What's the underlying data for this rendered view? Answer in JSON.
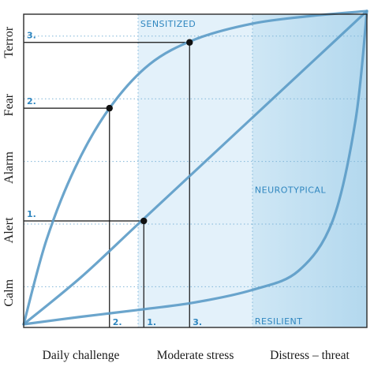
{
  "chart_data": {
    "type": "line",
    "xlabel": "",
    "ylabel": "",
    "xlim": [
      0,
      3
    ],
    "ylim": [
      0,
      5
    ],
    "x_tick_labels": [
      "Daily challenge",
      "Moderate stress",
      "Distress – threat"
    ],
    "y_tick_labels": [
      "Calm",
      "Alert",
      "Alarm",
      "Fear",
      "Terror"
    ],
    "grid": true,
    "zones": [
      {
        "from": 1.0,
        "to": 2.0,
        "shade": "light"
      },
      {
        "from": 2.0,
        "to": 3.0,
        "shade": "medium"
      }
    ],
    "series": [
      {
        "name": "SENSITIZED",
        "x": [
          0.0,
          0.2,
          0.45,
          0.75,
          1.1,
          1.5,
          2.0,
          2.5,
          3.0
        ],
        "y": [
          0.05,
          1.4,
          2.55,
          3.5,
          4.2,
          4.6,
          4.85,
          4.97,
          5.05
        ]
      },
      {
        "name": "NEUROTYPICAL",
        "x": [
          0.0,
          0.5,
          1.0,
          1.5,
          2.0,
          2.5,
          3.0
        ],
        "y": [
          0.05,
          0.8,
          1.65,
          2.5,
          3.35,
          4.2,
          5.05
        ]
      },
      {
        "name": "RESILIENT",
        "x": [
          0.0,
          0.5,
          1.0,
          1.5,
          2.0,
          2.4,
          2.7,
          2.9,
          3.0
        ],
        "y": [
          0.05,
          0.17,
          0.28,
          0.4,
          0.6,
          0.9,
          1.7,
          3.3,
          5.05
        ]
      }
    ],
    "markers": [
      {
        "label": "1.",
        "x": 1.05,
        "y": 1.7
      },
      {
        "label": "2.",
        "x": 0.75,
        "y": 3.5
      },
      {
        "label": "3.",
        "x": 1.45,
        "y": 4.55
      }
    ],
    "colors": {
      "curve": "#5b9bc6",
      "label": "#2f86bf",
      "zone_light": "#e3f1fa",
      "zone_dark": "#c2e0f1",
      "marker": "#111111",
      "grid": "#7fb5d8",
      "axis": "#2a2a2a"
    }
  }
}
